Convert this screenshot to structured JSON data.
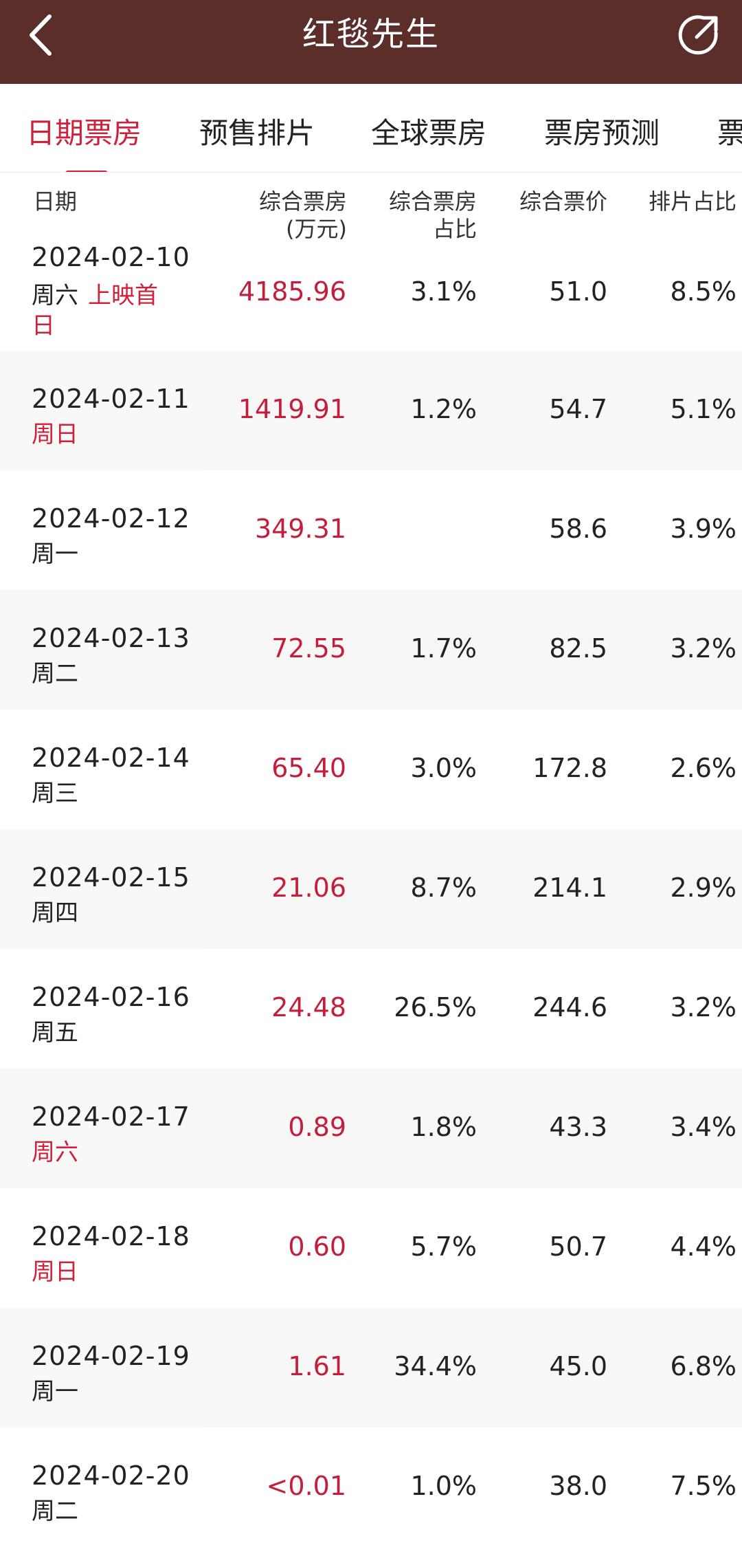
{
  "header": {
    "title": "红毯先生"
  },
  "tabs": [
    {
      "label": "日期票房",
      "active": true
    },
    {
      "label": "预售排片",
      "active": false
    },
    {
      "label": "全球票房",
      "active": false
    },
    {
      "label": "票房预测",
      "active": false
    },
    {
      "label": "票",
      "active": false
    }
  ],
  "table": {
    "columns": {
      "date": "日期",
      "box_office": "综合票房",
      "box_office_unit": "(万元)",
      "share": "综合票房",
      "share_line2": "占比",
      "price": "综合票价",
      "schedule": "排片占比"
    },
    "rows": [
      {
        "date": "2024-02-10",
        "weekday": "周六",
        "tag": "上映首",
        "tag2": "日",
        "weekday_red": false,
        "box_office": "4185.96",
        "share": "3.1%",
        "price": "51.0",
        "schedule": "8.5%"
      },
      {
        "date": "2024-02-11",
        "weekday": "周日",
        "weekday_red": true,
        "box_office": "1419.91",
        "share": "1.2%",
        "price": "54.7",
        "schedule": "5.1%"
      },
      {
        "date": "2024-02-12",
        "weekday": "周一",
        "weekday_red": false,
        "box_office": "349.31",
        "share": "",
        "price": "58.6",
        "schedule": "3.9%"
      },
      {
        "date": "2024-02-13",
        "weekday": "周二",
        "weekday_red": false,
        "box_office": "72.55",
        "share": "1.7%",
        "price": "82.5",
        "schedule": "3.2%"
      },
      {
        "date": "2024-02-14",
        "weekday": "周三",
        "weekday_red": false,
        "box_office": "65.40",
        "share": "3.0%",
        "price": "172.8",
        "schedule": "2.6%"
      },
      {
        "date": "2024-02-15",
        "weekday": "周四",
        "weekday_red": false,
        "box_office": "21.06",
        "share": "8.7%",
        "price": "214.1",
        "schedule": "2.9%"
      },
      {
        "date": "2024-02-16",
        "weekday": "周五",
        "weekday_red": false,
        "box_office": "24.48",
        "share": "26.5%",
        "price": "244.6",
        "schedule": "3.2%"
      },
      {
        "date": "2024-02-17",
        "weekday": "周六",
        "weekday_red": true,
        "box_office": "0.89",
        "share": "1.8%",
        "price": "43.3",
        "schedule": "3.4%"
      },
      {
        "date": "2024-02-18",
        "weekday": "周日",
        "weekday_red": true,
        "box_office": "0.60",
        "share": "5.7%",
        "price": "50.7",
        "schedule": "4.4%"
      },
      {
        "date": "2024-02-19",
        "weekday": "周一",
        "weekday_red": false,
        "box_office": "1.61",
        "share": "34.4%",
        "price": "45.0",
        "schedule": "6.8%"
      },
      {
        "date": "2024-02-20",
        "weekday": "周二",
        "weekday_red": false,
        "box_office": "<0.01",
        "share": "1.0%",
        "price": "38.0",
        "schedule": "7.5%"
      }
    ]
  },
  "colors": {
    "titlebar": "#5b2e2a",
    "accent": "#d0213a",
    "box_office_text": "#c41e3a"
  },
  "icons": {
    "back": "back-chevron-icon",
    "share": "share-icon"
  }
}
